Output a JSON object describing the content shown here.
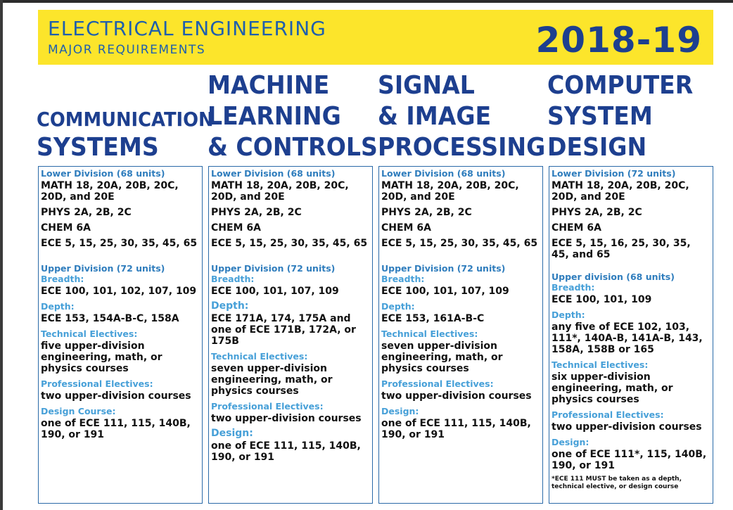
{
  "banner": {
    "title": "ELECTRICAL ENGINEERING",
    "subtitle": "MAJOR REQUIREMENTS",
    "year": "2018-19"
  },
  "columns": [
    {
      "title_lines": [
        "COMMUNICATION",
        "SYSTEMS"
      ],
      "lower_heading": "Lower Division (68 units)",
      "lower_items": [
        "MATH 18, 20A, 20B, 20C, 20D, and 20E",
        "PHYS 2A, 2B, 2C",
        "CHEM 6A",
        "ECE 5, 15, 25, 30, 35, 45, 65"
      ],
      "upper_heading": "Upper Division (72 units)",
      "sections": [
        {
          "label": "Breadth:",
          "text": "ECE 100, 101, 102, 107, 109"
        },
        {
          "label": "Depth:",
          "text": "ECE 153, 154A-B-C, 158A"
        },
        {
          "label": "Technical Electives:",
          "text": "five upper-division engineering, math, or physics courses"
        },
        {
          "label": "Professional Electives:",
          "text": "two upper-division courses"
        },
        {
          "label": "Design Course:",
          "text": "one of ECE 111, 115, 140B, 190, or 191"
        }
      ]
    },
    {
      "title_lines": [
        "MACHINE",
        "LEARNING",
        "& CONTROLS"
      ],
      "lower_heading": "Lower Division (68 units)",
      "lower_items": [
        "MATH 18, 20A, 20B, 20C, 20D, and 20E",
        "PHYS 2A, 2B, 2C",
        "CHEM 6A",
        "ECE 5, 15, 25, 30, 35, 45, 65"
      ],
      "upper_heading": "Upper Division (72 units)",
      "sections": [
        {
          "label": "Breadth:",
          "text": "ECE 100, 101, 107, 109"
        },
        {
          "label": "Depth:",
          "text": "ECE 171A, 174, 175A and one of ECE 171B, 172A, or 175B"
        },
        {
          "label": "Technical Electives:",
          "text": "seven upper-division engineering, math, or physics courses"
        },
        {
          "label": "Professional Electives:",
          "text": "two upper-division courses"
        },
        {
          "label": "Design:",
          "text": "one of ECE 111, 115, 140B, 190, or 191"
        }
      ]
    },
    {
      "title_lines": [
        "SIGNAL",
        "& IMAGE",
        "PROCESSING"
      ],
      "lower_heading": "Lower Division (68 units)",
      "lower_items": [
        "MATH 18, 20A, 20B, 20C, 20D, and 20E",
        "PHYS 2A, 2B, 2C",
        "CHEM 6A",
        "ECE 5, 15, 25, 30, 35, 45, 65"
      ],
      "upper_heading": "Upper Division (72 units)",
      "sections": [
        {
          "label": "Breadth:",
          "text": "ECE 100, 101, 107, 109"
        },
        {
          "label": "Depth:",
          "text": "ECE 153, 161A-B-C"
        },
        {
          "label": "Technical Electives:",
          "text": "seven upper-division engineering, math, or physics courses"
        },
        {
          "label": "Professional Electives:",
          "text": "two upper-division courses"
        },
        {
          "label": "Design:",
          "text": "one of ECE 111, 115, 140B, 190, or 191"
        }
      ]
    },
    {
      "title_lines": [
        "COMPUTER",
        "SYSTEM",
        "DESIGN"
      ],
      "lower_heading": "Lower Division (72 units)",
      "lower_items": [
        "MATH 18, 20A, 20B, 20C, 20D, and 20E",
        "PHYS 2A, 2B, 2C",
        "CHEM 6A",
        "ECE 5, 15, 16, 25, 30, 35, 45, and 65"
      ],
      "upper_heading": "Upper division (68 units)",
      "sections": [
        {
          "label": "Breadth:",
          "text": "ECE 100, 101, 109"
        },
        {
          "label": "Depth:",
          "text": "any five of ECE 102, 103, 111*, 140A-B, 141A-B, 143, 158A, 158B or 165"
        },
        {
          "label": "Technical Electives:",
          "text": "six upper-division engineering, math, or physics courses"
        },
        {
          "label": "Professional Electives:",
          "text": "two upper-division courses"
        },
        {
          "label": "Design:",
          "text": "one of ECE 111*, 115, 140B, 190, or 191"
        }
      ],
      "note": "*ECE 111 MUST be taken as a depth, technical elective, or design course"
    }
  ]
}
